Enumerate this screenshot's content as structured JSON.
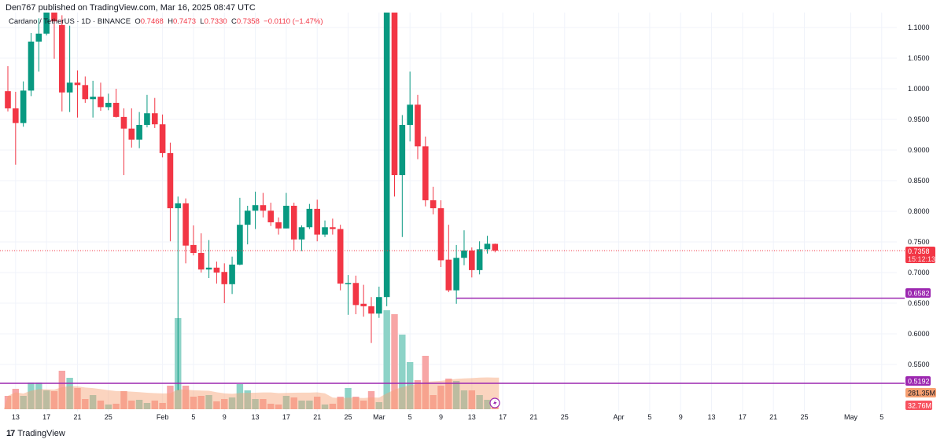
{
  "publisher": "Den767 published on TradingView.com, Mar 16, 2025 08:47 UTC",
  "legend": {
    "symbol": "Cardano / TetherUS · 1D · BINANCE",
    "o_label": "O",
    "o": "0.7468",
    "h_label": "H",
    "h": "0.7473",
    "l_label": "L",
    "l": "0.7330",
    "c_label": "C",
    "c": "0.7358",
    "change": "−0.0110 (−1.47%)"
  },
  "branding": "TradingView",
  "colors": {
    "up": "#089981",
    "down": "#f23645",
    "level": "#9c27b0",
    "volume_ma": "#f7a072"
  },
  "price_axis": {
    "ticks": [
      "1.1000",
      "1.0500",
      "1.0000",
      "0.9500",
      "0.9000",
      "0.8500",
      "0.8000",
      "0.7500",
      "0.7000",
      "0.6500",
      "0.6000",
      "0.5500"
    ],
    "last_price": "0.7358",
    "countdown": "15:12:13",
    "level_1": "0.6582",
    "level_2": "0.5192",
    "volume_ma": "281.35M",
    "volume_last": "32.76M"
  },
  "time_axis": {
    "ticks": [
      {
        "label": "13",
        "day": 1
      },
      {
        "label": "17",
        "day": 5
      },
      {
        "label": "21",
        "day": 9
      },
      {
        "label": "25",
        "day": 13
      },
      {
        "label": "Feb",
        "day": 20
      },
      {
        "label": "5",
        "day": 24
      },
      {
        "label": "9",
        "day": 28
      },
      {
        "label": "13",
        "day": 32
      },
      {
        "label": "17",
        "day": 36
      },
      {
        "label": "21",
        "day": 40
      },
      {
        "label": "25",
        "day": 44
      },
      {
        "label": "Mar",
        "day": 48
      },
      {
        "label": "5",
        "day": 52
      },
      {
        "label": "9",
        "day": 56
      },
      {
        "label": "13",
        "day": 60
      },
      {
        "label": "17",
        "day": 64
      },
      {
        "label": "21",
        "day": 68
      },
      {
        "label": "25",
        "day": 72
      },
      {
        "label": "Apr",
        "day": 79
      },
      {
        "label": "5",
        "day": 83
      },
      {
        "label": "9",
        "day": 87
      },
      {
        "label": "13",
        "day": 91
      },
      {
        "label": "17",
        "day": 95
      },
      {
        "label": "21",
        "day": 99
      },
      {
        "label": "25",
        "day": 103
      },
      {
        "label": "May",
        "day": 109
      },
      {
        "label": "5",
        "day": 113
      }
    ]
  },
  "chart_data": {
    "type": "candlestick",
    "symbol": "ADAUSDT",
    "interval": "1D",
    "ylim": [
      0.53,
      1.12
    ],
    "levels": [
      0.6582,
      0.5192
    ],
    "fields": [
      "date",
      "open",
      "high",
      "low",
      "close",
      "volume_M"
    ],
    "candles": [
      [
        "2025-01-12",
        0.996,
        1.037,
        0.963,
        0.968,
        51
      ],
      [
        "2025-01-13",
        0.968,
        0.995,
        0.876,
        0.944,
        78
      ],
      [
        "2025-01-14",
        0.944,
        1.012,
        0.938,
        0.997,
        51
      ],
      [
        "2025-01-15",
        0.997,
        1.091,
        0.988,
        1.077,
        102
      ],
      [
        "2025-01-16",
        1.077,
        1.115,
        1.028,
        1.09,
        102
      ],
      [
        "2025-01-17",
        1.09,
        1.14,
        1.087,
        1.13,
        72
      ],
      [
        "2025-01-18",
        1.13,
        1.15,
        1.049,
        1.11,
        69
      ],
      [
        "2025-01-19",
        1.104,
        1.12,
        0.963,
        0.994,
        147
      ],
      [
        "2025-01-20",
        0.994,
        1.103,
        0.962,
        1.01,
        120
      ],
      [
        "2025-01-21",
        1.01,
        1.03,
        0.953,
        1.006,
        81
      ],
      [
        "2025-01-22",
        1.006,
        1.02,
        0.977,
        0.983,
        39
      ],
      [
        "2025-01-23",
        0.983,
        1.013,
        0.953,
        0.987,
        54
      ],
      [
        "2025-01-24",
        0.987,
        1.01,
        0.964,
        0.97,
        33
      ],
      [
        "2025-01-25",
        0.97,
        0.992,
        0.965,
        0.977,
        18
      ],
      [
        "2025-01-26",
        0.977,
        1.0,
        0.953,
        0.954,
        21
      ],
      [
        "2025-01-27",
        0.954,
        0.968,
        0.859,
        0.935,
        69
      ],
      [
        "2025-01-28",
        0.935,
        0.968,
        0.904,
        0.917,
        33
      ],
      [
        "2025-01-29",
        0.917,
        0.962,
        0.903,
        0.941,
        36
      ],
      [
        "2025-01-30",
        0.941,
        0.99,
        0.937,
        0.96,
        24
      ],
      [
        "2025-01-31",
        0.96,
        0.985,
        0.936,
        0.942,
        33
      ],
      [
        "2025-02-01",
        0.942,
        0.958,
        0.888,
        0.895,
        24
      ],
      [
        "2025-02-02",
        0.895,
        0.912,
        0.751,
        0.805,
        90
      ],
      [
        "2025-02-03",
        0.805,
        0.824,
        0.508,
        0.813,
        348
      ],
      [
        "2025-02-04",
        0.813,
        0.821,
        0.715,
        0.744,
        90
      ],
      [
        "2025-02-05",
        0.745,
        0.777,
        0.728,
        0.732,
        48
      ],
      [
        "2025-02-06",
        0.732,
        0.764,
        0.7,
        0.705,
        51
      ],
      [
        "2025-02-07",
        0.705,
        0.753,
        0.691,
        0.708,
        54
      ],
      [
        "2025-02-08",
        0.708,
        0.718,
        0.682,
        0.7,
        30
      ],
      [
        "2025-02-09",
        0.701,
        0.715,
        0.65,
        0.681,
        39
      ],
      [
        "2025-02-10",
        0.681,
        0.726,
        0.665,
        0.713,
        45
      ],
      [
        "2025-02-11",
        0.713,
        0.822,
        0.712,
        0.778,
        96
      ],
      [
        "2025-02-12",
        0.778,
        0.809,
        0.746,
        0.801,
        72
      ],
      [
        "2025-02-13",
        0.801,
        0.832,
        0.771,
        0.81,
        39
      ],
      [
        "2025-02-14",
        0.81,
        0.83,
        0.79,
        0.801,
        39
      ],
      [
        "2025-02-15",
        0.801,
        0.814,
        0.776,
        0.782,
        21
      ],
      [
        "2025-02-16",
        0.782,
        0.79,
        0.762,
        0.772,
        18
      ],
      [
        "2025-02-17",
        0.772,
        0.83,
        0.772,
        0.809,
        51
      ],
      [
        "2025-02-18",
        0.809,
        0.814,
        0.736,
        0.754,
        45
      ],
      [
        "2025-02-19",
        0.754,
        0.777,
        0.735,
        0.774,
        33
      ],
      [
        "2025-02-20",
        0.774,
        0.812,
        0.771,
        0.804,
        33
      ],
      [
        "2025-02-21",
        0.804,
        0.819,
        0.751,
        0.762,
        48
      ],
      [
        "2025-02-22",
        0.762,
        0.785,
        0.758,
        0.774,
        18
      ],
      [
        "2025-02-23",
        0.774,
        0.788,
        0.762,
        0.771,
        21
      ],
      [
        "2025-02-24",
        0.771,
        0.778,
        0.671,
        0.682,
        48
      ],
      [
        "2025-02-25",
        0.681,
        0.696,
        0.631,
        0.683,
        81
      ],
      [
        "2025-02-26",
        0.683,
        0.695,
        0.632,
        0.647,
        48
      ],
      [
        "2025-02-27",
        0.649,
        0.68,
        0.628,
        0.645,
        33
      ],
      [
        "2025-02-28",
        0.645,
        0.66,
        0.585,
        0.633,
        69
      ],
      [
        "2025-03-01",
        0.633,
        0.677,
        0.626,
        0.66,
        27
      ],
      [
        "2025-03-02",
        0.66,
        1.16,
        0.645,
        1.13,
        378
      ],
      [
        "2025-03-03",
        1.13,
        1.16,
        0.824,
        0.859,
        363
      ],
      [
        "2025-03-04",
        0.859,
        0.957,
        0.758,
        0.941,
        285
      ],
      [
        "2025-03-05",
        0.941,
        1.028,
        0.914,
        0.974,
        180
      ],
      [
        "2025-03-06",
        0.974,
        0.99,
        0.885,
        0.906,
        111
      ],
      [
        "2025-03-07",
        0.906,
        0.922,
        0.808,
        0.818,
        204
      ],
      [
        "2025-03-08",
        0.818,
        0.84,
        0.795,
        0.805,
        54
      ],
      [
        "2025-03-09",
        0.805,
        0.818,
        0.709,
        0.72,
        90
      ],
      [
        "2025-03-10",
        0.721,
        0.778,
        0.668,
        0.671,
        117
      ],
      [
        "2025-03-11",
        0.671,
        0.745,
        0.649,
        0.724,
        108
      ],
      [
        "2025-03-12",
        0.724,
        0.769,
        0.712,
        0.736,
        72
      ],
      [
        "2025-03-13",
        0.736,
        0.741,
        0.692,
        0.704,
        72
      ],
      [
        "2025-03-14",
        0.704,
        0.751,
        0.697,
        0.738,
        54
      ],
      [
        "2025-03-15",
        0.738,
        0.76,
        0.731,
        0.747,
        36
      ],
      [
        "2025-03-16",
        0.7468,
        0.7473,
        0.733,
        0.7358,
        32.76
      ]
    ]
  }
}
